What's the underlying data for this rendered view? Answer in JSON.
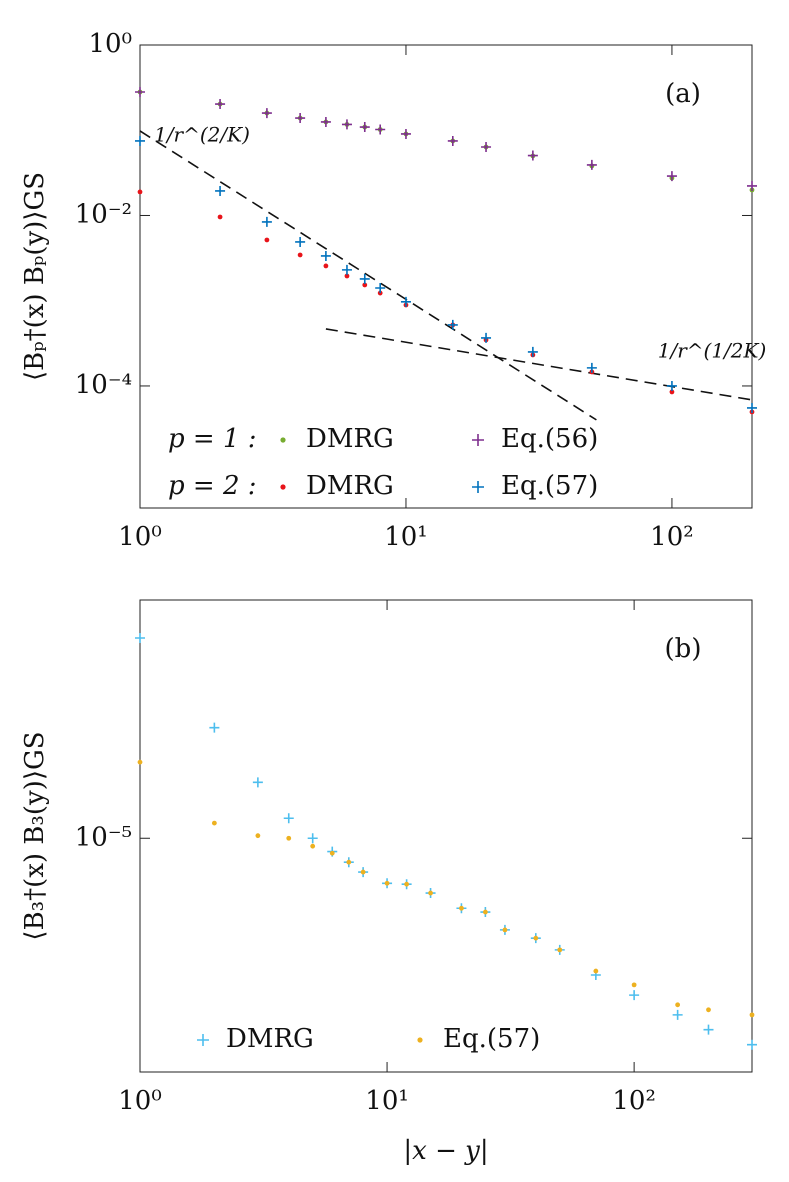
{
  "chart_data": [
    {
      "type": "scatter",
      "panel_label": "(a)",
      "ylabel": "⟨Bₚ†(x) Bₚ(y)⟩GS",
      "xscale": "log",
      "yscale": "log",
      "xlim": [
        1,
        200
      ],
      "ylim": [
        3.7e-06,
        1
      ],
      "xticks": [
        {
          "value": 1,
          "label": "10⁰"
        },
        {
          "value": 10,
          "label": "10¹"
        },
        {
          "value": 100,
          "label": "10²"
        }
      ],
      "yticks": [
        {
          "value": 1,
          "label": "10⁰"
        },
        {
          "value": 0.01,
          "label": "10⁻²"
        },
        {
          "value": 0.0001,
          "label": "10⁻⁴"
        }
      ],
      "legend_rows": [
        "p = 1 :",
        "p = 2 :"
      ],
      "x": [
        1,
        2,
        3,
        4,
        5,
        6,
        7,
        8,
        10,
        15,
        20,
        30,
        50,
        100,
        200
      ],
      "series": [
        {
          "name": "DMRG",
          "color": "#77ac30",
          "marker": "dot",
          "values": [
            0.281,
            0.203,
            0.159,
            0.139,
            0.125,
            0.117,
            0.109,
            0.102,
            0.0904,
            0.0748,
            0.0636,
            0.0499,
            0.0381,
            0.0275,
            0.0199
          ]
        },
        {
          "name": "Eq.(56)",
          "color": "#7e2f8e",
          "marker": "plus",
          "values": [
            0.281,
            0.203,
            0.159,
            0.139,
            0.125,
            0.117,
            0.109,
            0.102,
            0.0904,
            0.0748,
            0.0636,
            0.0505,
            0.0392,
            0.029,
            0.0222
          ]
        },
        {
          "name": "DMRG",
          "color": "#e8141a",
          "marker": "dot",
          "values": [
            0.0189,
            0.0096,
            0.00516,
            0.00344,
            0.00256,
            0.00195,
            0.00153,
            0.00123,
            0.00089,
            0.00052,
            0.000347,
            0.000231,
            0.000146,
            8.51e-05,
            4.95e-05
          ]
        },
        {
          "name": "Eq.(57)",
          "color": "#0072bd",
          "marker": "plus",
          "values": [
            0.0748,
            0.0194,
            0.0084,
            0.00489,
            0.00335,
            0.0023,
            0.0018,
            0.00141,
            0.00097,
            0.00052,
            0.000366,
            0.000251,
            0.000163,
            0.0001,
            5.52e-05
          ]
        }
      ],
      "reference_lines": [
        {
          "label": "1/r^(2/K)",
          "x": [
            1,
            52
          ],
          "y": [
            0.098,
            4e-05
          ]
        },
        {
          "label": "1/r^(1/2K)",
          "x": [
            5,
            200
          ],
          "y": [
            0.000467,
            6.86e-05
          ]
        }
      ]
    },
    {
      "type": "scatter",
      "panel_label": "(b)",
      "ylabel": "⟨B₃†(x) B₃(y)⟩GS",
      "xlabel": "|x − y|",
      "xscale": "log",
      "yscale": "log",
      "xlim": [
        1,
        300
      ],
      "ylim": [
        4.07e-06,
        2.5e-05
      ],
      "xticks": [
        {
          "value": 1,
          "label": "10⁰"
        },
        {
          "value": 10,
          "label": "10¹"
        },
        {
          "value": 100,
          "label": "10²"
        }
      ],
      "yticks": [
        {
          "value": 1e-05,
          "label": "10⁻⁵"
        }
      ],
      "x": [
        1,
        2,
        3,
        4,
        5,
        6,
        7,
        8,
        10,
        12,
        15,
        20,
        25,
        30,
        40,
        50,
        70,
        100,
        150,
        200,
        300
      ],
      "series": [
        {
          "name": "DMRG",
          "color": "#4dbeee",
          "marker": "plus",
          "values": [
            2.16e-05,
            1.53e-05,
            1.24e-05,
            1.08e-05,
            1e-05,
            9.5e-06,
            9.12e-06,
            8.78e-06,
            8.41e-06,
            8.38e-06,
            8.1e-06,
            7.64e-06,
            7.53e-06,
            7.03e-06,
            6.81e-06,
            6.51e-06,
            5.91e-06,
            5.47e-06,
            5.07e-06,
            4.79e-06,
            4.52e-06
          ]
        },
        {
          "name": "Eq.(57)",
          "color": "#edb120",
          "marker": "dot",
          "values": [
            1.34e-05,
            1.06e-05,
            1.01e-05,
            1e-05,
            9.7e-06,
            9.44e-06,
            9.12e-06,
            8.78e-06,
            8.41e-06,
            8.38e-06,
            8.1e-06,
            7.64e-06,
            7.53e-06,
            7.03e-06,
            6.81e-06,
            6.51e-06,
            6e-06,
            5.69e-06,
            5.27e-06,
            5.17e-06,
            5.07e-06
          ]
        }
      ]
    }
  ]
}
